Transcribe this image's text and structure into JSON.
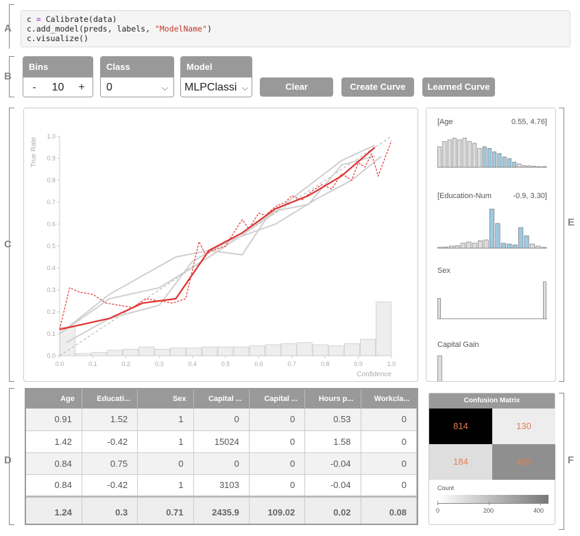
{
  "section_letters": [
    "A",
    "B",
    "C",
    "D",
    "E",
    "F"
  ],
  "code": {
    "line1_var": "c",
    "line1_eq": "=",
    "line1_call": "Calibrate(data)",
    "line2_pre": "c.add_model(preds, labels, ",
    "line2_str": "\"ModelName\"",
    "line2_post": ")",
    "line3": "c.visualize()"
  },
  "controls": {
    "bins": {
      "label": "Bins",
      "minus": "-",
      "value": "10",
      "plus": "+"
    },
    "class": {
      "label": "Class",
      "value": "0"
    },
    "model": {
      "label": "Model",
      "value": "MLPClassi"
    },
    "clear_label": "Clear",
    "create_curve_label": "Create Curve",
    "learned_curve_label": "Learned Curve"
  },
  "colors": {
    "accent_red": "#e03030",
    "gray": "#999999",
    "blue": "#9ecae1",
    "cm_text": "#e67e50"
  },
  "chart_data": {
    "type": "line",
    "xlabel": "Confidence",
    "ylabel": "True Rate",
    "xlim": [
      0,
      1
    ],
    "ylim": [
      0,
      1
    ],
    "xticks": [
      "0.0",
      "0.1",
      "0.2",
      "0.3",
      "0.4",
      "0.5",
      "0.6",
      "0.7",
      "0.8",
      "0.9",
      "1.0"
    ],
    "yticks": [
      "0.0",
      "0.1",
      "0.2",
      "0.3",
      "0.4",
      "0.5",
      "0.6",
      "0.7",
      "0.8",
      "0.9",
      "1.0"
    ],
    "series": [
      {
        "style": "red-solid",
        "x": [
          0.0,
          0.15,
          0.25,
          0.35,
          0.45,
          0.55,
          0.65,
          0.75,
          0.85,
          0.95
        ],
        "y": [
          0.12,
          0.17,
          0.24,
          0.26,
          0.48,
          0.56,
          0.67,
          0.73,
          0.82,
          0.95
        ]
      },
      {
        "style": "red-dashed",
        "x": [
          0.0,
          0.03,
          0.06,
          0.1,
          0.14,
          0.18,
          0.22,
          0.26,
          0.3,
          0.34,
          0.38,
          0.42,
          0.44,
          0.46,
          0.5,
          0.52,
          0.55,
          0.57,
          0.6,
          0.62,
          0.65,
          0.68,
          0.7,
          0.73,
          0.76,
          0.79,
          0.82,
          0.85,
          0.88,
          0.9,
          0.92,
          0.94,
          0.96,
          1.0
        ],
        "y": [
          0.12,
          0.31,
          0.29,
          0.28,
          0.24,
          0.23,
          0.22,
          0.26,
          0.25,
          0.24,
          0.26,
          0.52,
          0.46,
          0.48,
          0.5,
          0.55,
          0.62,
          0.58,
          0.65,
          0.64,
          0.68,
          0.7,
          0.73,
          0.71,
          0.75,
          0.78,
          0.76,
          0.83,
          0.8,
          0.88,
          0.86,
          0.92,
          0.82,
          0.98
        ]
      },
      {
        "style": "gray-1",
        "x": [
          0.0,
          0.15,
          0.3,
          0.45,
          0.55,
          0.65,
          0.75,
          0.85,
          0.95
        ],
        "y": [
          0.1,
          0.26,
          0.31,
          0.45,
          0.55,
          0.66,
          0.69,
          0.87,
          0.91
        ]
      },
      {
        "style": "gray-2",
        "x": [
          0.02,
          0.15,
          0.3,
          0.4,
          0.52,
          0.65,
          0.78,
          0.88,
          0.97
        ],
        "y": [
          0.06,
          0.17,
          0.23,
          0.43,
          0.53,
          0.6,
          0.72,
          0.8,
          0.91
        ]
      },
      {
        "style": "gray-3",
        "x": [
          0.0,
          0.15,
          0.35,
          0.45,
          0.55,
          0.62,
          0.72,
          0.85,
          0.95
        ],
        "y": [
          0.1,
          0.28,
          0.45,
          0.48,
          0.46,
          0.62,
          0.74,
          0.89,
          0.96
        ]
      },
      {
        "style": "gray-dashed",
        "x": [
          0.0,
          1.0
        ],
        "y": [
          0.0,
          1.0
        ]
      }
    ],
    "histogram": {
      "counts": [
        0.13,
        0.01,
        0.015,
        0.025,
        0.03,
        0.04,
        0.03,
        0.035,
        0.035,
        0.04,
        0.04,
        0.04,
        0.045,
        0.05,
        0.055,
        0.06,
        0.05,
        0.045,
        0.055,
        0.075,
        0.245
      ]
    }
  },
  "features": [
    {
      "name": "[Age",
      "range": "0.55, 4.76]",
      "bars": [
        0.6,
        0.75,
        0.8,
        0.85,
        0.8,
        0.85,
        0.75,
        0.7,
        0.55,
        0.6,
        0.55,
        0.45,
        0.4,
        0.3,
        0.25,
        0.15,
        0.1,
        0.05,
        0.04,
        0.03,
        0.02,
        0.02
      ],
      "highlight": [
        9,
        15
      ]
    },
    {
      "name": "[Education-Num",
      "range": "-0.9, 3.30]",
      "bars": [
        0.02,
        0.03,
        0.05,
        0.06,
        0.12,
        0.15,
        0.12,
        0.18,
        0.2,
        0.95,
        0.6,
        0.12,
        0.1,
        0.08,
        0.5,
        0.3,
        0.1,
        0.05,
        0.02
      ],
      "highlight": [
        9,
        15
      ]
    },
    {
      "name": "Sex",
      "range": "",
      "bars": [
        0.55,
        0,
        0,
        0,
        0,
        0,
        0,
        0,
        0,
        0,
        0,
        0,
        0,
        0,
        0,
        0,
        0,
        0,
        0,
        0,
        0,
        0,
        0,
        0,
        0,
        1.0
      ],
      "highlight": [
        -1,
        -1
      ]
    },
    {
      "name": "Capital Gain",
      "range": "",
      "bars": [
        1.0
      ],
      "highlight": [
        -1,
        -1
      ]
    }
  ],
  "table": {
    "headers": [
      "Age",
      "Educati...",
      "Sex",
      "Capital ...",
      "Capital ...",
      "Hours p...",
      "Workcla..."
    ],
    "rows": [
      [
        "0.91",
        "1.52",
        "1",
        "0",
        "0",
        "0.53",
        "0"
      ],
      [
        "1.42",
        "-0.42",
        "1",
        "15024",
        "0",
        "1.58",
        "0"
      ],
      [
        "0.84",
        "0.75",
        "0",
        "0",
        "0",
        "-0.04",
        "0"
      ],
      [
        "0.84",
        "-0.42",
        "1",
        "3103",
        "0",
        "-0.04",
        "0"
      ]
    ],
    "summary": [
      "1.24",
      "0.3",
      "0.71",
      "2435.9",
      "109.02",
      "0.02",
      "0.08"
    ]
  },
  "confusion_matrix": {
    "title": "Confusion Matrix",
    "cells": [
      [
        "814",
        "130"
      ],
      [
        "184",
        "420"
      ]
    ],
    "cell_colors": [
      [
        "#000000",
        "#ededed"
      ],
      [
        "#dedede",
        "#8f8f8f"
      ]
    ],
    "legend_label": "Count",
    "legend_ticks": [
      "0",
      "200",
      "400"
    ]
  }
}
